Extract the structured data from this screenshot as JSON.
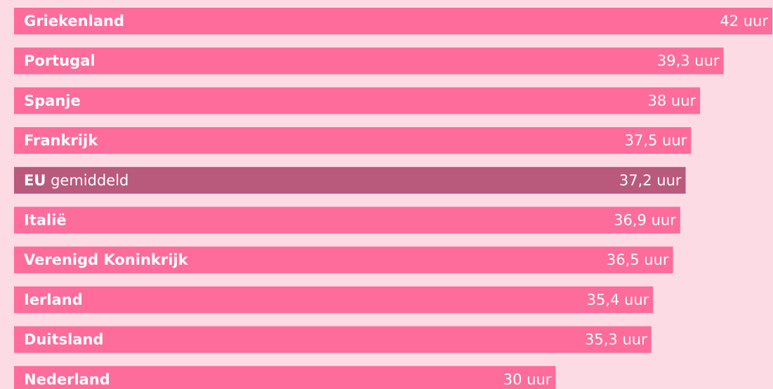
{
  "chart_data": {
    "type": "bar",
    "orientation": "horizontal",
    "categories": [
      "Griekenland",
      "Portugal",
      "Spanje",
      "Frankrijk",
      "EU gemiddeld",
      "Italië",
      "Verenigd Koninkrijk",
      "Ierland",
      "Duitsland",
      "Nederland"
    ],
    "values": [
      42,
      39.3,
      38,
      37.5,
      37.2,
      36.9,
      36.5,
      35.4,
      35.3,
      30
    ],
    "value_labels": [
      "42 uur",
      "39,3 uur",
      "38 uur",
      "37,5 uur",
      "37,2 uur",
      "36,9 uur",
      "36,5 uur",
      "35,4 uur",
      "35,3 uur",
      "30 uur"
    ],
    "color": "#fd6c9b",
    "highlight_color": "#b9597c",
    "highlight": [
      4
    ]
  }
}
